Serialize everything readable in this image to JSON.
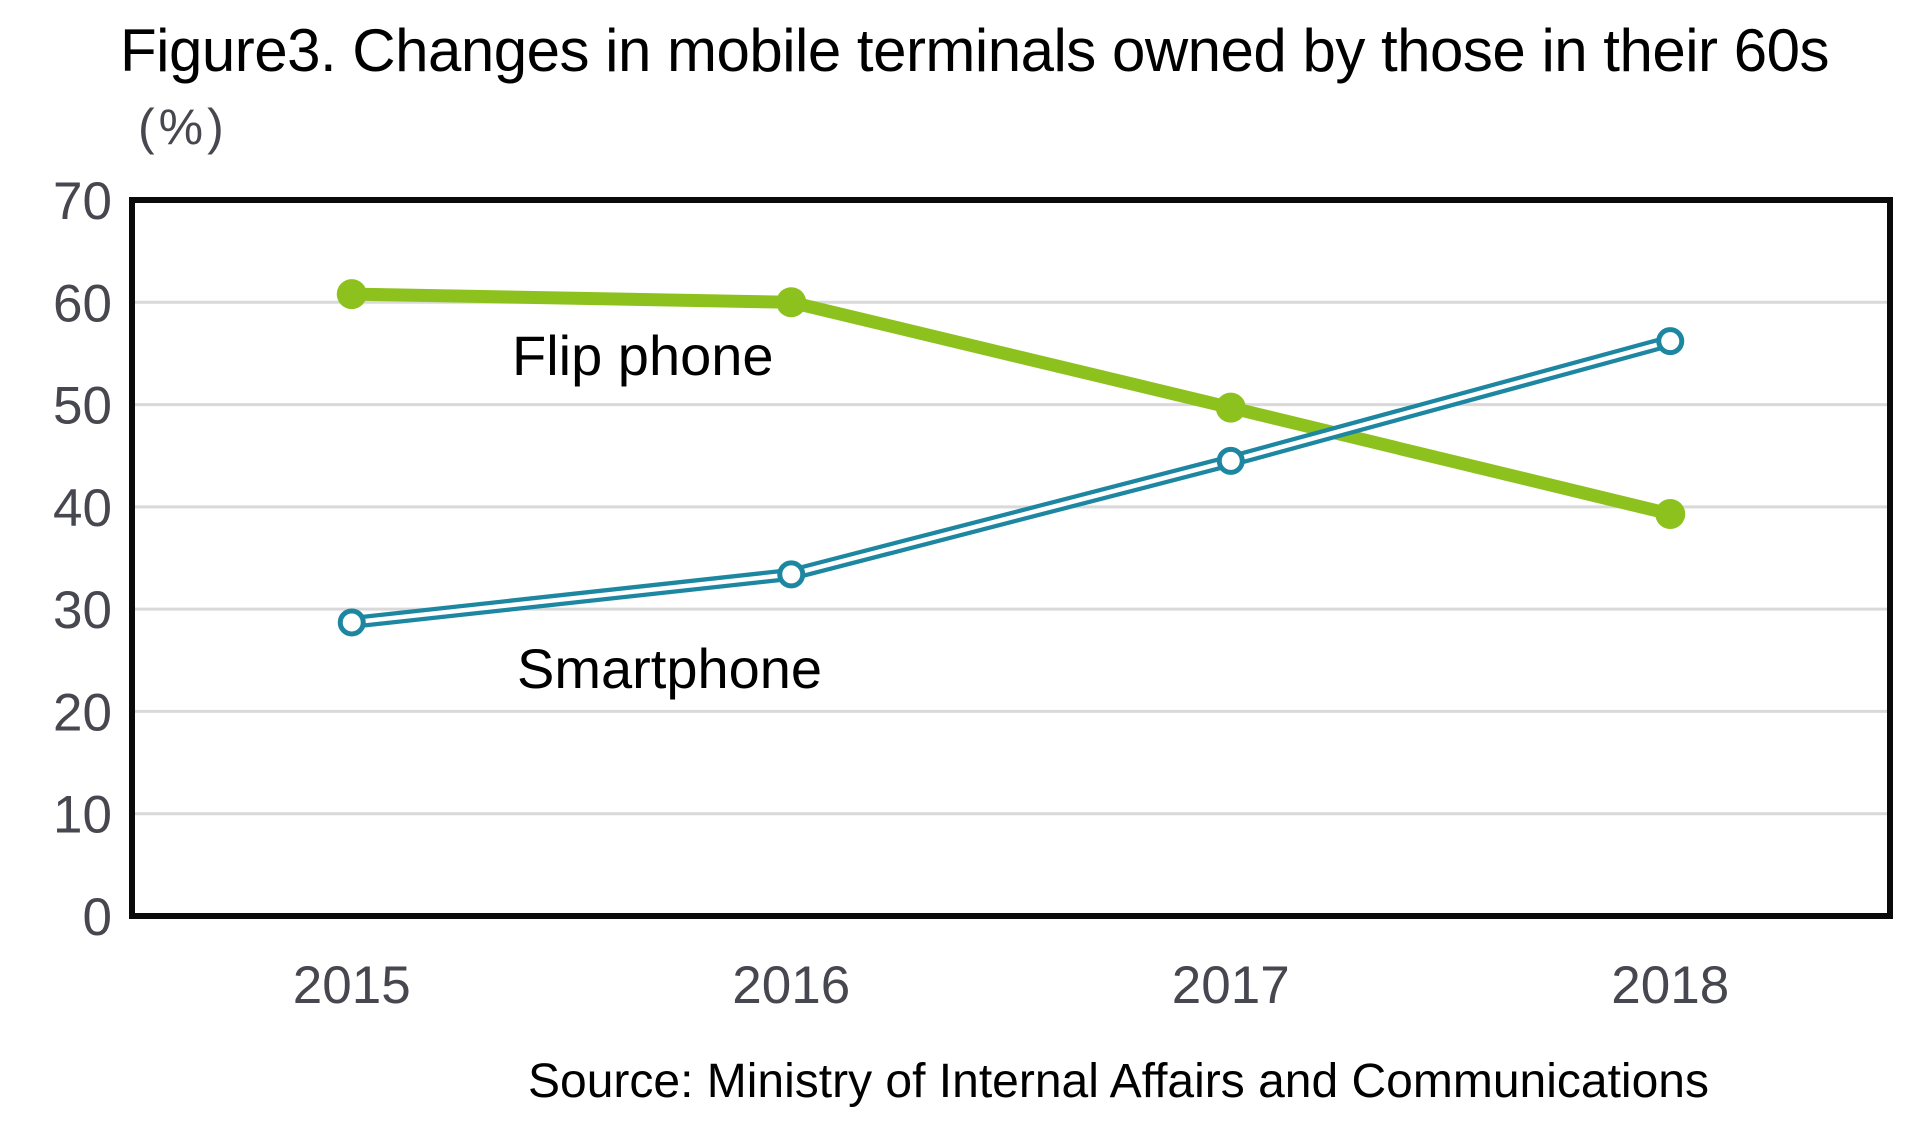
{
  "chart_data": {
    "type": "line",
    "title": "Figure3. Changes in mobile terminals owned by those in their 60s",
    "unit_label": "(%)",
    "source": "Source: Ministry of Internal Affairs and Communications",
    "categories": [
      "2015",
      "2016",
      "2017",
      "2018"
    ],
    "series": [
      {
        "name": "Flip phone",
        "values": [
          60.8,
          60.0,
          49.7,
          39.3
        ],
        "color": "#8DC21E",
        "marker": "filled-circle"
      },
      {
        "name": "Smartphone",
        "values": [
          28.7,
          33.4,
          44.5,
          56.2
        ],
        "color": "#1D87A2",
        "marker": "open-circle-double-line"
      }
    ],
    "ylim": [
      0,
      70
    ],
    "y_ticks": [
      0,
      10,
      20,
      30,
      40,
      50,
      60,
      70
    ],
    "xlabel": "",
    "ylabel": "(%)",
    "grid": "horizontal",
    "legend": "inline-labels",
    "colors": {
      "gridline": "#D9D9D9",
      "axis_text": "#47474F",
      "plot_border": "#0A0A0A",
      "label_text": "#000000"
    }
  }
}
